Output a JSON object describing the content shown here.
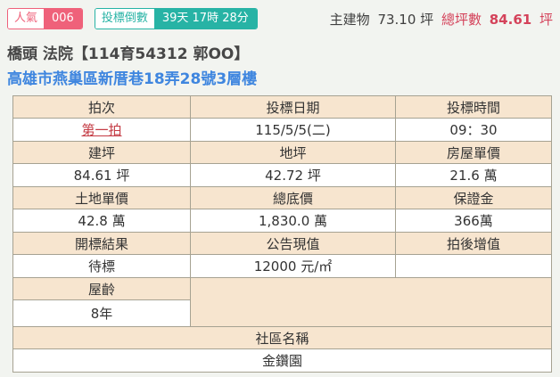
{
  "colors": {
    "page-bg": "#f2f4f0",
    "pink": "#ef617a",
    "teal": "#27b3a5",
    "red": "#d4425a",
    "red-link": "#c43b44",
    "blue": "#3f86df",
    "beige": "#f7e5cf",
    "border": "#a6a292",
    "title-gray": "#474747"
  },
  "topbar": {
    "popularity": {
      "label": "人氣",
      "value": "006"
    },
    "countdown": {
      "label": "投標倒數",
      "value": "39天 17時 28分"
    },
    "summary": {
      "main_label": "主建物",
      "main_value": "73.10 坪",
      "total_label": "總坪數",
      "total_value": "84.61",
      "total_unit": "坪"
    }
  },
  "header": {
    "title": "橋頭 法院【114育54312 郭OO】",
    "address": "高雄市燕巢區新厝巷18弄28號3層樓"
  },
  "table": {
    "r1": {
      "h1": "拍次",
      "h2": "投標日期",
      "h3": "投標時間",
      "v1": "第一拍",
      "v2": "115/5/5(二)",
      "v3": "09：30"
    },
    "r2": {
      "h1": "建坪",
      "h2": "地坪",
      "h3": "房屋單價",
      "v1": "84.61 坪",
      "v2": "42.72 坪",
      "v3": "21.6 萬"
    },
    "r3": {
      "h1": "土地單價",
      "h2": "總底價",
      "h3": "保證金",
      "v1": "42.8 萬",
      "v2": "1,830.0 萬",
      "v3": "366萬"
    },
    "r4": {
      "h1": "開標結果",
      "h2": "公告現值",
      "h3": "拍後增值",
      "v1": "待標",
      "v2": "12000 元/㎡",
      "v3": ""
    },
    "r5": {
      "h1": "屋齡",
      "v1": "8年"
    },
    "r6": {
      "h": "社區名稱",
      "v": "金鑽園"
    }
  }
}
